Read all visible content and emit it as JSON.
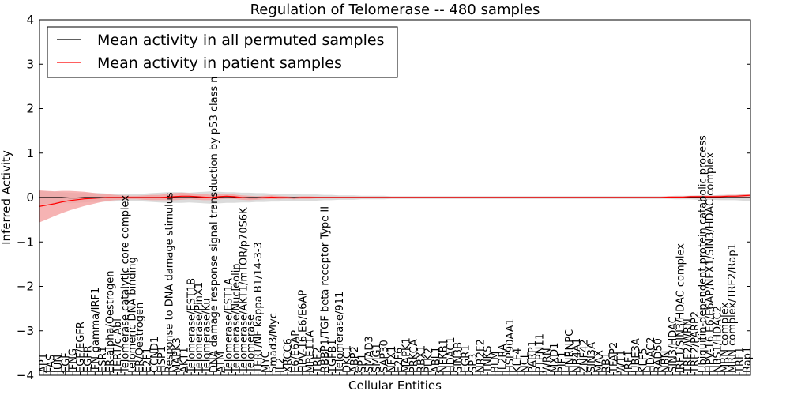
{
  "chart_data": {
    "type": "line",
    "title": "Regulation of Telomerase -- 480 samples",
    "xlabel": "Cellular Entities",
    "ylabel": "Inferred Activity",
    "ylim": [
      -4,
      4
    ],
    "yticks": [
      "−4",
      "−3",
      "−2",
      "−1",
      "0",
      "1",
      "2",
      "3",
      "4"
    ],
    "grid": false,
    "legend_position": "top-left",
    "colors": {
      "permuted": "#000000",
      "patient": "#ff0000",
      "patient_band": "#f4a0a0",
      "permuted_band": "#cfcfcf"
    },
    "categories": [
      "AP1",
      "FAS",
      "JUN",
      "EGF",
      "IFNG",
      "EGF/EGFR",
      "EGFR",
      "IFN-gamma/IRF1",
      "ESR1",
      "ER-alpha/Oestrogen",
      "TERT/c-Abl",
      "Telomerase catalytic core complex",
      "telomeric DNA binding",
      "ER/Oestrogen",
      "E2F1",
      "CCND1",
      "HSP1",
      "Response to DNA damage stimulus",
      "MAPK3",
      "AKT1",
      "Telomerase/EST1B",
      "Telomerase/PinX1",
      "Telomerase/Ku",
      "DNA damage response signal transduction by p53 class mediator",
      "ATM",
      "Telomerase/EST1A",
      "Telomerase/Nucleolin",
      "Telomerase/AKT1/mTOR/p70S6K",
      "Telomerase",
      "TERT/NF kappa B1/14-3-3",
      "MYC",
      "Smad3/Myc",
      "IL2",
      "XRCC6",
      "E6/E6AP",
      "HPV-16 E6/E6AP",
      "MRE11A",
      "TRF2",
      "RBBP1/TGF beta receptor Type II",
      "TGFB1",
      "Telomerase/911",
      "DKC1",
      "ABP2",
      "SP1",
      "SMAD3",
      "SMG1",
      "SAP30",
      "NFX1",
      "E2F6",
      "MAPK1",
      "PRKCA",
      "RBX1",
      "PLK2",
      "ABL1",
      "NFKB1",
      "HDAC1",
      "SIN3B",
      "EGR1",
      "SP3",
      "NR2F2",
      "TNKS",
      "BLM",
      "IL2RA",
      "HSP90AA1",
      "KLF4",
      "NCL",
      "PARP1",
      "PTPN11",
      "WRN",
      "MXD1",
      "PIF1",
      "HNRNPC",
      "NR4A1",
      "ZNF42",
      "SIN3A",
      "MAX",
      "RB1",
      "TFAP2",
      "WT1",
      "IRF1",
      "UBE3A",
      "KLF5",
      "HDAC2",
      "RAD50",
      "NBN",
      "SIN3/HDAC",
      "IRF1/SIN3/HDAC complex",
      "TRF2/WRN",
      "TRF2/PARP2",
      "Ubiquitin-dependent protein catabolic process",
      "HPV-16 E6/E6AP/NFX1/SIN3/HDAC complex",
      "NBS1/HDAC2",
      "MRN complex",
      "MRN complex/TRF2/Rap1",
      "TRF1",
      "Rap1"
    ],
    "visible_tick_labels": [
      "AP1",
      "FAS",
      "JUN",
      "EGF",
      "IFNG",
      "EGF/EGFR",
      "EGFR",
      "IFN-gamma/IRF1",
      "ESR1",
      "ER-alpha/Oestrogen",
      "TERT/c-Abl",
      "Telomerase catalytic core complex",
      "telomeric DNA binding",
      "ER/Oestrogen",
      "E2F1",
      "CCND1",
      "HSP1",
      "Response to DNA damage stimulus",
      "MAPK3",
      "AKT1",
      "Telomerase/EST1B",
      "Telomerase/PinX1",
      "Telomerase/Ku",
      "DNA damage response signal transduction by p53 class mediator",
      "ATM",
      "Telomerase/EST1A",
      "Telomerase/Nucleolin",
      "Telomerase/AKT1/mTOR/p70S6K",
      "Telomerase",
      "TERT/NF kappa B1/14-3-3",
      "MYC",
      "Smad3/Myc",
      "IL2",
      "XRCC6",
      "E6/E6AP",
      "HPV-16 E6/E6AP",
      "MRE11A",
      "TRF2",
      "RBBP1/TGF beta receptor Type II",
      "TGFB1",
      "Telomerase/911",
      "DKC1",
      "ABP2",
      "SP1",
      "SMAD3",
      "SMG1",
      "SAP30",
      "NFX1",
      "E2F6",
      "MAPK1",
      "PRKCA",
      "RBX1",
      "PLK2",
      "ABL1",
      "NFKB1",
      "HDAC1",
      "SIN3B",
      "EGR1",
      "SP3",
      "NR2F2",
      "TNKS",
      "BLM",
      "IL2RA",
      "HSP90AA1",
      "KLF4",
      "NCL",
      "PARP1",
      "PTPN11",
      "WRN",
      "MXD1",
      "PIF1",
      "HNRNPC",
      "NR4A1",
      "ZNF42",
      "SIN3A",
      "MAX",
      "RB1",
      "TFAP2",
      "WT1",
      "IRF1",
      "UBE3A",
      "KLF5",
      "HDAC2",
      "RAD50",
      "NBN",
      "SIN3/HDAC",
      "IRF1/SIN3/HDAC complex",
      "TRF2/WRN",
      "TRF2/PARP2",
      "Ubiquitin-dependent protein catabolic process",
      "HPV-16 E6/E6AP/NFX1/SIN3/HDAC complex",
      "NBS1/HDAC2",
      "MRN complex",
      "MRN complex/TRF2/Rap1",
      "TRF1",
      "Rap1"
    ],
    "series": [
      {
        "name": "Mean activity in all permuted samples",
        "values": [
          0.0,
          0.0,
          0.0,
          0.0,
          -0.01,
          -0.01,
          0.0,
          0.0,
          0.0,
          0.0,
          0.0,
          0.0,
          0.0,
          0.0,
          0.0,
          0.0,
          0.0,
          0.0,
          0.0,
          0.0,
          0.0,
          0.0,
          0.0,
          0.0,
          0.0,
          0.0,
          0.0,
          0.0,
          0.0,
          0.0,
          0.0,
          0.0,
          0.0,
          0.0,
          0.0,
          0.0,
          0.0,
          0.0,
          0.0,
          0.0,
          0.0,
          0.0,
          0.0,
          0.0,
          0.0,
          0.0,
          0.0,
          0.0,
          0.0,
          0.0,
          0.0,
          0.0,
          0.0,
          0.0,
          0.0,
          0.0,
          0.0,
          0.0,
          0.0,
          0.0,
          0.0,
          0.0,
          0.0,
          0.0,
          0.0,
          0.0,
          0.0,
          0.0,
          0.0,
          0.0,
          0.0,
          0.0,
          0.0,
          0.0,
          0.0,
          0.0,
          0.0,
          0.0,
          0.0,
          0.0,
          0.0,
          0.0,
          0.0,
          0.0,
          0.0,
          0.0,
          0.0,
          0.0,
          0.0,
          0.0,
          0.0,
          0.0,
          0.0,
          0.0,
          0.0,
          0.0
        ],
        "band": [
          0.15,
          0.14,
          0.13,
          0.12,
          0.12,
          0.11,
          0.11,
          0.1,
          0.1,
          0.09,
          0.09,
          0.08,
          0.08,
          0.08,
          0.09,
          0.1,
          0.11,
          0.12,
          0.12,
          0.12,
          0.11,
          0.12,
          0.13,
          0.14,
          0.13,
          0.12,
          0.12,
          0.11,
          0.11,
          0.1,
          0.1,
          0.09,
          0.09,
          0.08,
          0.08,
          0.07,
          0.07,
          0.07,
          0.06,
          0.06,
          0.05,
          0.05,
          0.05,
          0.04,
          0.04,
          0.04,
          0.04,
          0.03,
          0.03,
          0.03,
          0.03,
          0.03,
          0.03,
          0.03,
          0.03,
          0.03,
          0.03,
          0.03,
          0.03,
          0.03,
          0.03,
          0.03,
          0.03,
          0.03,
          0.03,
          0.03,
          0.03,
          0.03,
          0.03,
          0.03,
          0.03,
          0.03,
          0.03,
          0.03,
          0.03,
          0.03,
          0.03,
          0.03,
          0.03,
          0.03,
          0.03,
          0.03,
          0.03,
          0.03,
          0.03,
          0.04,
          0.04,
          0.04,
          0.05,
          0.05,
          0.05,
          0.06,
          0.06,
          0.06,
          0.07,
          0.07
        ]
      },
      {
        "name": "Mean activity in patient samples",
        "values": [
          -0.2,
          -0.17,
          -0.14,
          -0.1,
          -0.07,
          -0.05,
          -0.03,
          -0.02,
          -0.01,
          0.0,
          0.0,
          0.0,
          0.0,
          0.0,
          0.0,
          0.0,
          0.0,
          0.01,
          0.02,
          0.03,
          0.03,
          0.02,
          0.01,
          0.0,
          0.02,
          0.03,
          0.02,
          0.0,
          -0.01,
          -0.01,
          0.0,
          0.01,
          0.0,
          0.0,
          -0.01,
          0.0,
          0.0,
          0.0,
          0.0,
          0.0,
          0.0,
          0.0,
          0.0,
          0.0,
          0.0,
          0.0,
          0.0,
          0.0,
          0.0,
          0.0,
          0.0,
          0.0,
          0.0,
          0.0,
          0.0,
          0.0,
          0.0,
          0.0,
          0.0,
          0.0,
          0.0,
          0.0,
          0.0,
          0.0,
          0.0,
          0.0,
          0.0,
          0.0,
          0.0,
          0.0,
          0.0,
          0.0,
          0.0,
          0.0,
          0.0,
          0.0,
          0.0,
          0.0,
          0.0,
          0.0,
          0.0,
          0.0,
          0.0,
          0.0,
          0.01,
          0.01,
          0.01,
          0.02,
          0.02,
          0.02,
          0.02,
          0.02,
          0.03,
          0.03,
          0.04,
          0.05
        ],
        "band": [
          0.36,
          0.32,
          0.28,
          0.25,
          0.22,
          0.19,
          0.16,
          0.13,
          0.1,
          0.08,
          0.06,
          0.05,
          0.04,
          0.04,
          0.05,
          0.06,
          0.06,
          0.07,
          0.08,
          0.08,
          0.07,
          0.07,
          0.07,
          0.06,
          0.06,
          0.06,
          0.05,
          0.05,
          0.05,
          0.04,
          0.04,
          0.04,
          0.04,
          0.03,
          0.03,
          0.03,
          0.03,
          0.02,
          0.02,
          0.02,
          0.02,
          0.02,
          0.02,
          0.02,
          0.02,
          0.02,
          0.02,
          0.02,
          0.02,
          0.02,
          0.02,
          0.02,
          0.02,
          0.02,
          0.02,
          0.02,
          0.02,
          0.02,
          0.02,
          0.02,
          0.02,
          0.02,
          0.02,
          0.02,
          0.02,
          0.02,
          0.02,
          0.02,
          0.02,
          0.02,
          0.02,
          0.02,
          0.02,
          0.02,
          0.02,
          0.02,
          0.02,
          0.02,
          0.02,
          0.02,
          0.02,
          0.02,
          0.02,
          0.02,
          0.02,
          0.02,
          0.02,
          0.02,
          0.02,
          0.02,
          0.02,
          0.03,
          0.03,
          0.03,
          0.03,
          0.04
        ]
      }
    ]
  }
}
